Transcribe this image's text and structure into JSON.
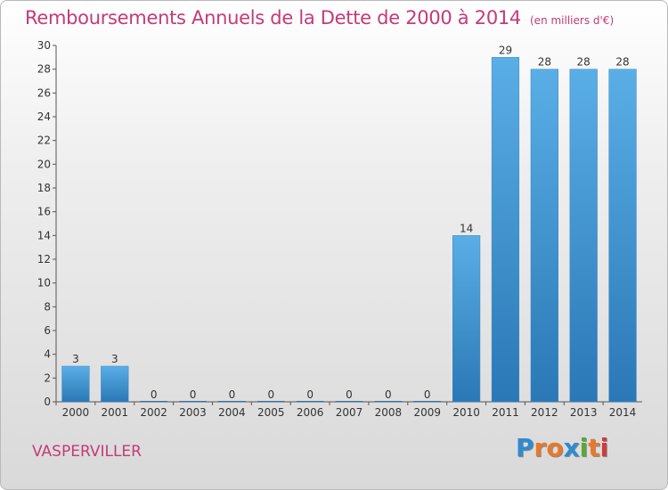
{
  "header": {
    "title": "Remboursements Annuels de la Dette de 2000 à 2014",
    "subtitle": "(en milliers d'€)"
  },
  "footer": {
    "place": "VASPERVILLER",
    "logo_text": "Proxiti",
    "logo_colors": [
      "#2e8bd1",
      "#e8792b",
      "#e8792b",
      "#2e8bd1",
      "#5aa83a",
      "#e8792b",
      "#d33a3a"
    ]
  },
  "colors": {
    "bar_light": "#5aaee6",
    "bar_dark": "#2a78b6",
    "title": "#c43a79"
  },
  "chart_data": {
    "type": "bar",
    "title": "Remboursements Annuels de la Dette de 2000 à 2014",
    "subtitle": "(en milliers d'€)",
    "xlabel": "",
    "ylabel": "",
    "categories": [
      "2000",
      "2001",
      "2002",
      "2003",
      "2004",
      "2005",
      "2006",
      "2007",
      "2008",
      "2009",
      "2010",
      "2011",
      "2012",
      "2013",
      "2014"
    ],
    "values": [
      3,
      3,
      0,
      0,
      0,
      0,
      0,
      0,
      0,
      0,
      14,
      29,
      28,
      28,
      28
    ],
    "data_labels": [
      "3",
      "3",
      "0",
      "0",
      "0",
      "0",
      "0",
      "0",
      "0",
      "0",
      "14",
      "29",
      "28",
      "28",
      "28"
    ],
    "ylim": [
      0,
      30
    ],
    "yticks": [
      0,
      2,
      4,
      6,
      8,
      10,
      12,
      14,
      16,
      18,
      20,
      22,
      24,
      26,
      28,
      30
    ],
    "grid": false,
    "legend": "none"
  }
}
